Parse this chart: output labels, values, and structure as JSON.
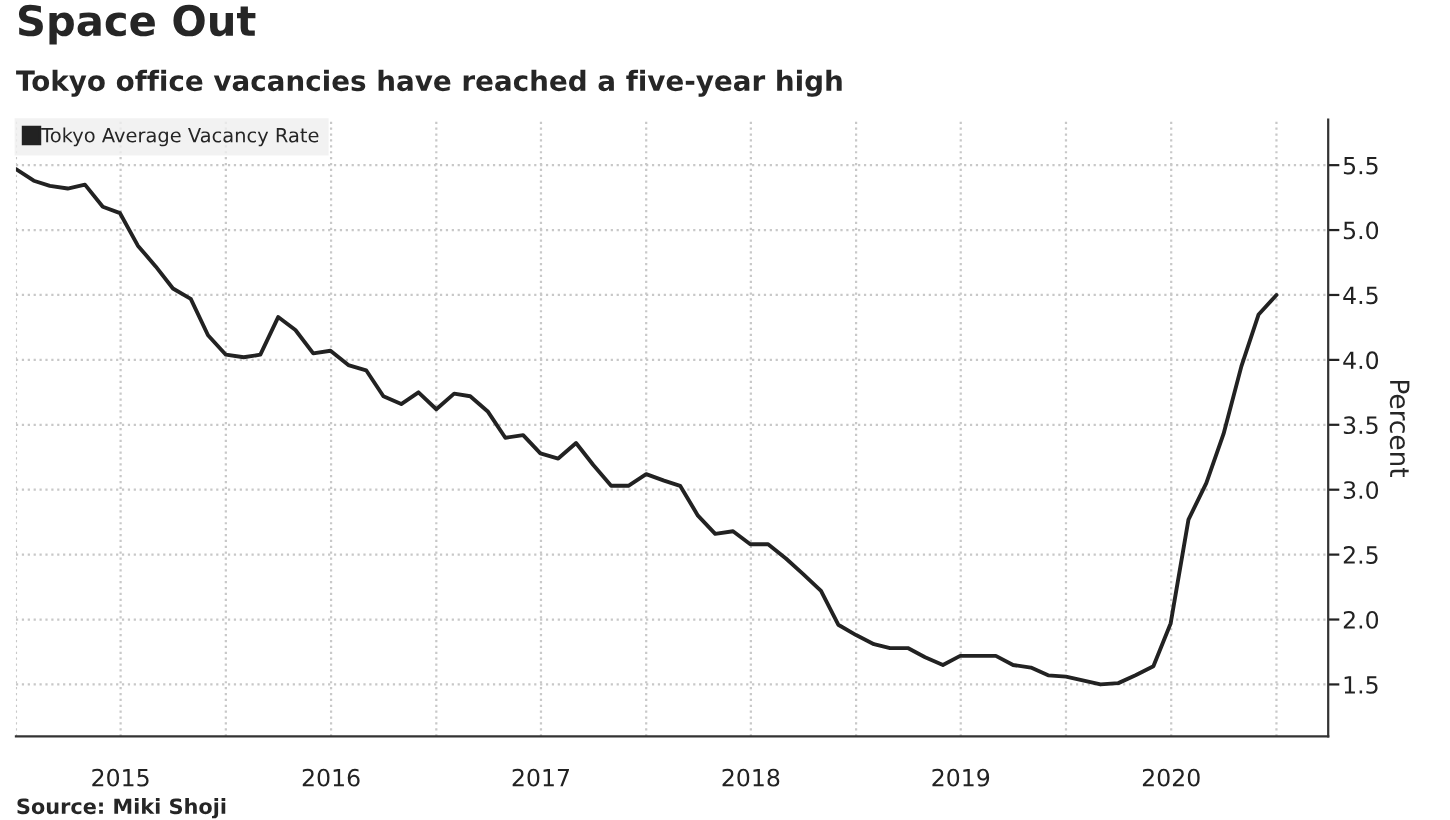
{
  "chart_data": {
    "type": "line",
    "title": "Space Out",
    "subtitle": "Tokyo office vacancies have reached a five-year high",
    "ylabel": "Percent",
    "annotations": [
      "Source: Miki Shoji"
    ],
    "x": [
      "2015-01",
      "2015-02",
      "2015-03",
      "2015-04",
      "2015-05",
      "2015-06",
      "2015-07",
      "2015-08",
      "2015-09",
      "2015-10",
      "2015-11",
      "2015-12",
      "2016-01",
      "2016-02",
      "2016-03",
      "2016-04",
      "2016-05",
      "2016-06",
      "2016-07",
      "2016-08",
      "2016-09",
      "2016-10",
      "2016-11",
      "2016-12",
      "2017-01",
      "2017-02",
      "2017-03",
      "2017-04",
      "2017-05",
      "2017-06",
      "2017-07",
      "2017-08",
      "2017-09",
      "2017-10",
      "2017-11",
      "2017-12",
      "2018-01",
      "2018-02",
      "2018-03",
      "2018-04",
      "2018-05",
      "2018-06",
      "2018-07",
      "2018-08",
      "2018-09",
      "2018-10",
      "2018-11",
      "2018-12",
      "2019-01",
      "2019-02",
      "2019-03",
      "2019-04",
      "2019-05",
      "2019-06",
      "2019-07",
      "2019-08",
      "2019-09",
      "2019-10",
      "2019-11",
      "2019-12",
      "2020-01",
      "2020-02",
      "2020-03",
      "2020-04",
      "2020-05",
      "2020-06",
      "2020-07",
      "2020-08",
      "2020-09",
      "2020-10",
      "2020-11",
      "2020-12",
      "2021-01"
    ],
    "series": [
      {
        "name": "Tokyo Average Vacancy Rate",
        "color": "#222222",
        "values": [
          5.47,
          5.38,
          5.34,
          5.32,
          5.35,
          5.18,
          5.13,
          4.88,
          4.72,
          4.55,
          4.47,
          4.19,
          4.04,
          4.02,
          4.04,
          4.33,
          4.23,
          4.05,
          4.07,
          3.96,
          3.92,
          3.72,
          3.66,
          3.75,
          3.62,
          3.74,
          3.72,
          3.6,
          3.4,
          3.42,
          3.28,
          3.24,
          3.36,
          3.19,
          3.03,
          3.03,
          3.12,
          3.07,
          3.03,
          2.8,
          2.66,
          2.68,
          2.58,
          2.58,
          2.47,
          2.35,
          2.22,
          1.96,
          1.88,
          1.81,
          1.78,
          1.78,
          1.71,
          1.65,
          1.72,
          1.72,
          1.72,
          1.65,
          1.63,
          1.57,
          1.56,
          1.53,
          1.5,
          1.51,
          1.57,
          1.64,
          1.97,
          2.77,
          3.05,
          3.43,
          3.95,
          4.35,
          4.5
        ]
      }
    ],
    "xlim": [
      "2015-01-01",
      "2021-04-01"
    ],
    "xticks": [
      {
        "value": "2015-01-01",
        "label": null
      },
      {
        "value": "2015-07-02",
        "label": "2015"
      },
      {
        "value": "2016-01-01",
        "label": null
      },
      {
        "value": "2016-07-02",
        "label": "2016"
      },
      {
        "value": "2017-01-01",
        "label": null
      },
      {
        "value": "2017-07-02",
        "label": "2017"
      },
      {
        "value": "2018-01-01",
        "label": null
      },
      {
        "value": "2018-07-02",
        "label": "2018"
      },
      {
        "value": "2019-01-01",
        "label": null
      },
      {
        "value": "2019-07-02",
        "label": "2019"
      },
      {
        "value": "2020-01-01",
        "label": null
      },
      {
        "value": "2020-07-02",
        "label": "2020"
      },
      {
        "value": "2021-01-01",
        "label": null
      }
    ],
    "ylim": [
      1.1,
      5.85
    ],
    "yticks": [
      1.5,
      {
        "value": 2,
        "label": "2.0"
      },
      2.5,
      {
        "value": 3,
        "label": "3.0"
      },
      3.5,
      {
        "value": 4,
        "label": "4.0"
      },
      4.5,
      {
        "value": 5,
        "label": "5.0"
      },
      5.5
    ],
    "grid": true,
    "legend": "top left",
    "marker": "none",
    "line_style": "solid"
  }
}
